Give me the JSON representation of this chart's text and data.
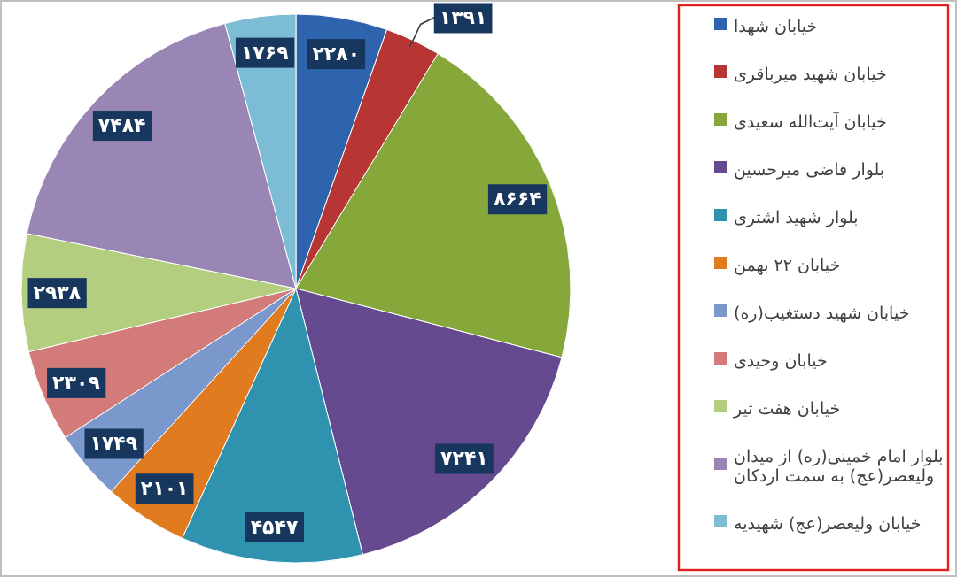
{
  "chart_data": {
    "type": "pie",
    "categories": [
      "خیابان شهدا",
      "خیابان شهید میرباقری",
      "خیابان آیت‌الله سعیدی",
      "بلوار قاضی میرحسین",
      "بلوار شهید اشتری",
      "خیابان ۲۲ بهمن",
      "خیابان شهید دستغیب(ره)",
      "خیابان وحیدی",
      "خیابان هفت تیر",
      "بلوار امام خمینی(ره) از میدان ولیعصر(عج) به سمت اردکان",
      "خیابان ولیعصر(عج) شهیدیه"
    ],
    "values": [
      2280,
      1391,
      8664,
      7241,
      4547,
      2101,
      1749,
      2309,
      2938,
      7484,
      1769
    ],
    "value_labels": [
      "۲۲۸۰",
      "۱۳۹۱",
      "۸۶۶۴",
      "۷۲۴۱",
      "۴۵۴۷",
      "۲۱۰۱",
      "۱۷۴۹",
      "۲۳۰۹",
      "۲۹۳۸",
      "۷۴۸۴",
      "۱۷۶۹"
    ],
    "colors": [
      "#2e64ae",
      "#b73634",
      "#86a83a",
      "#654a8f",
      "#2f93b0",
      "#e07b20",
      "#7b98cc",
      "#d27b7a",
      "#b3ce7f",
      "#9a86b5",
      "#7cbcd4"
    ],
    "legend": "right"
  }
}
